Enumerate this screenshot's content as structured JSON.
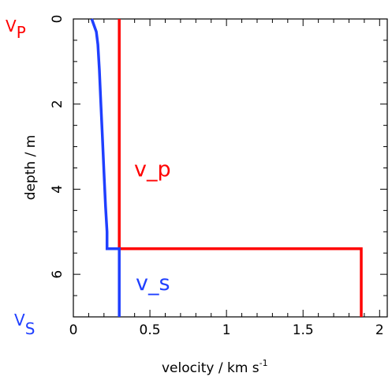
{
  "chart_data": {
    "type": "line",
    "xlabel": "velocity / km s",
    "xlabel_superscript": "-1",
    "ylabel": "depth / m",
    "xlim": [
      0,
      2.05
    ],
    "ylim": [
      0,
      7
    ],
    "y_inverted": true,
    "grid": false,
    "xticks": [
      0,
      0.5,
      1,
      1.5,
      2
    ],
    "xtick_labels": [
      "0",
      "0.5",
      "1",
      "1.5",
      "2"
    ],
    "yticks": [
      0,
      2,
      4,
      6
    ],
    "ytick_labels": [
      "0",
      "2",
      "4",
      "6"
    ],
    "series": [
      {
        "name": "v_p",
        "color": "#ff0000",
        "points": [
          {
            "x": 0.3,
            "y": 0
          },
          {
            "x": 0.3,
            "y": 5.4
          },
          {
            "x": 1.88,
            "y": 5.4
          },
          {
            "x": 1.88,
            "y": 7
          }
        ]
      },
      {
        "name": "v_s",
        "color": "#1f3fff",
        "points": [
          {
            "x": 0.12,
            "y": 0
          },
          {
            "x": 0.15,
            "y": 0.3
          },
          {
            "x": 0.16,
            "y": 0.6
          },
          {
            "x": 0.17,
            "y": 1.2
          },
          {
            "x": 0.18,
            "y": 2.0
          },
          {
            "x": 0.19,
            "y": 2.8
          },
          {
            "x": 0.2,
            "y": 3.6
          },
          {
            "x": 0.21,
            "y": 4.4
          },
          {
            "x": 0.22,
            "y": 5.0
          },
          {
            "x": 0.22,
            "y": 5.4
          },
          {
            "x": 0.3,
            "y": 5.4
          },
          {
            "x": 0.3,
            "y": 7
          }
        ]
      }
    ],
    "corner_labels": {
      "top": {
        "base": "V",
        "sub": "P",
        "color": "#ff0000"
      },
      "bottom": {
        "base": "V",
        "sub": "S",
        "color": "#1f3fff"
      }
    }
  }
}
